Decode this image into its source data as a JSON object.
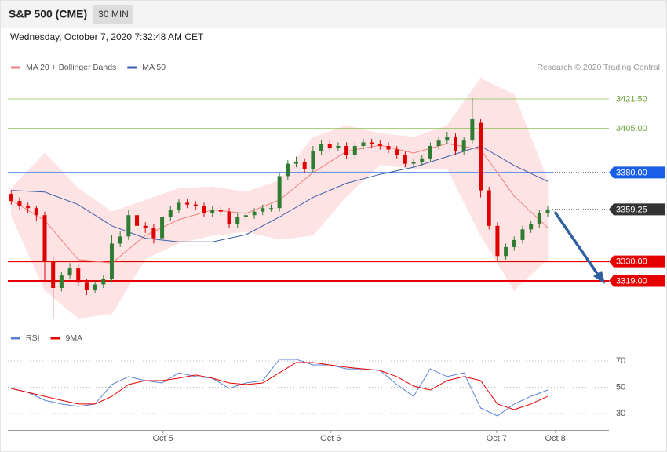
{
  "chart_data": [
    {
      "type": "candlestick",
      "title": "S&P 500 (CME)",
      "interval": "30 MIN",
      "subtitle": "Wednesday, October 7, 2020 7:32:48 AM CET",
      "credit": "Research © 2020 Trading Central",
      "xlim": [
        -0.4,
        71.3
      ],
      "ylim": [
        3296,
        3433
      ],
      "up_color": "#2e7d32",
      "down_color": "#e00000",
      "open": [
        3368,
        3364,
        3361,
        3360,
        3356,
        3330,
        3315,
        3322,
        3326,
        3318,
        3314,
        3317,
        3320,
        3340,
        3344,
        3356,
        3350,
        3349,
        3343,
        3355,
        3359,
        3363,
        3362,
        3361,
        3357,
        3359,
        3358,
        3351,
        3355,
        3356,
        3358,
        3360,
        3360,
        3378,
        3385,
        3386,
        3382,
        3392,
        3396,
        3394,
        3395,
        3390,
        3395,
        3397,
        3396,
        3395,
        3393,
        3390,
        3385,
        3386,
        3388,
        3395,
        3398,
        3400,
        3392,
        3398,
        3408,
        3370,
        3350,
        3333,
        3338,
        3342,
        3348,
        3351,
        3357
      ],
      "high": [
        3370,
        3366,
        3363,
        3361,
        3358,
        3333,
        3324,
        3329,
        3328,
        3320,
        3319,
        3322,
        3345,
        3347,
        3359,
        3358,
        3352,
        3351,
        3357,
        3361,
        3365,
        3365,
        3364,
        3363,
        3361,
        3361,
        3360,
        3357,
        3358,
        3360,
        3362,
        3362,
        3380,
        3387,
        3389,
        3388,
        3395,
        3398,
        3398,
        3397,
        3397,
        3397,
        3399,
        3399,
        3398,
        3397,
        3395,
        3392,
        3388,
        3390,
        3397,
        3400,
        3403,
        3402,
        3400,
        3422,
        3410,
        3372,
        3352,
        3340,
        3344,
        3350,
        3353,
        3359,
        3361
      ],
      "low": [
        3362,
        3359,
        3357,
        3353,
        3318,
        3298,
        3313,
        3320,
        3316,
        3311,
        3312,
        3315,
        3318,
        3338,
        3342,
        3348,
        3346,
        3340,
        3341,
        3353,
        3357,
        3360,
        3359,
        3355,
        3355,
        3356,
        3349,
        3349,
        3353,
        3354,
        3356,
        3358,
        3358,
        3376,
        3383,
        3380,
        3380,
        3390,
        3392,
        3392,
        3388,
        3388,
        3393,
        3394,
        3393,
        3391,
        3388,
        3383,
        3383,
        3384,
        3386,
        3393,
        3396,
        3390,
        3390,
        3396,
        3366,
        3348,
        3330,
        3331,
        3336,
        3340,
        3346,
        3349,
        3355
      ],
      "close": [
        3364,
        3361,
        3360,
        3356,
        3330,
        3315,
        3322,
        3326,
        3318,
        3314,
        3317,
        3320,
        3340,
        3344,
        3356,
        3350,
        3349,
        3343,
        3355,
        3359,
        3363,
        3362,
        3361,
        3357,
        3359,
        3358,
        3351,
        3355,
        3356,
        3358,
        3360,
        3360,
        3378,
        3385,
        3386,
        3382,
        3392,
        3396,
        3394,
        3395,
        3390,
        3395,
        3397,
        3396,
        3395,
        3393,
        3390,
        3385,
        3386,
        3388,
        3395,
        3398,
        3400,
        3392,
        3398,
        3410,
        3370,
        3350,
        3333,
        3338,
        3342,
        3348,
        3351,
        3357,
        3359.25
      ],
      "series": [
        {
          "name": "MA 20 + Bollinger Bands",
          "color": "#f08080",
          "band_color": "#fde3e3",
          "x": [
            0,
            4,
            8,
            12,
            16,
            20,
            24,
            28,
            32,
            36,
            40,
            44,
            48,
            52,
            56,
            60,
            64
          ],
          "values": [
            3364.5,
            3353,
            3331,
            3329,
            3344.6,
            3353.5,
            3359,
            3357,
            3364.5,
            3380,
            3392,
            3395.4,
            3391,
            3396.3,
            3393,
            3366.7,
            3349
          ],
          "upper": [
            3371,
            3391,
            3371,
            3357.9,
            3364.5,
            3371,
            3372,
            3369,
            3375.6,
            3399.9,
            3406.5,
            3402,
            3400,
            3406.5,
            3433,
            3424,
            3375.6
          ],
          "lower": [
            3355.7,
            3313.7,
            3298,
            3300.4,
            3331.4,
            3340.2,
            3344.6,
            3346.8,
            3342.4,
            3344.6,
            3366.7,
            3384.4,
            3382.2,
            3382.2,
            3344.6,
            3313.7,
            3331.4
          ]
        },
        {
          "name": "MA 50",
          "color": "#3b5ea8",
          "x": [
            0,
            4,
            8,
            12,
            16,
            20,
            24,
            28,
            32,
            36,
            40,
            44,
            48,
            52,
            56,
            60,
            64
          ],
          "values": [
            3370,
            3369,
            3362,
            3350,
            3343,
            3341,
            3341,
            3345,
            3355,
            3366,
            3374,
            3379,
            3383,
            3389,
            3395,
            3384,
            3375
          ]
        }
      ],
      "levels": [
        {
          "value": 3421.5,
          "label": "3421.50",
          "color": "#8cc152",
          "boxed": false,
          "line": "solid"
        },
        {
          "value": 3405,
          "label": "3405.00",
          "color": "#8cc152",
          "boxed": false,
          "line": "solid"
        },
        {
          "value": 3380,
          "label": "3380.00",
          "color": "#1a5ee8",
          "boxed": true,
          "line": "solid-dotted"
        },
        {
          "value": 3359.25,
          "label": "3359.25",
          "color": "#333333",
          "boxed": true,
          "line": "dotted"
        },
        {
          "value": 3330,
          "label": "3330.00",
          "color": "#e60000",
          "boxed": true,
          "line": "solid"
        },
        {
          "value": 3319,
          "label": "3319.00",
          "color": "#e60000",
          "boxed": true,
          "line": "solid"
        }
      ]
    },
    {
      "type": "line",
      "xlim": [
        -0.4,
        71.3
      ],
      "ylim": [
        20,
        90
      ],
      "yticks": [
        70,
        50,
        30
      ],
      "grid": true,
      "xticks": [
        {
          "value": 18.1,
          "label": "Oct 5"
        },
        {
          "value": 38.1,
          "label": "Oct 6"
        },
        {
          "value": 57.9,
          "label": "Oct 7"
        },
        {
          "value": 64.9,
          "label": "Oct 8"
        }
      ],
      "series": [
        {
          "name": "RSI",
          "color": "#5b7fd6",
          "x": [
            0,
            2,
            4,
            6,
            8,
            10,
            12,
            14,
            16,
            18,
            20,
            22,
            24,
            26,
            28,
            30,
            32,
            34,
            36,
            38,
            40,
            42,
            44,
            46,
            48,
            50,
            52,
            54,
            56,
            58,
            60,
            62,
            64
          ],
          "values": [
            49.1,
            46.1,
            40.1,
            37.2,
            35.4,
            37.2,
            52.1,
            58.1,
            55.1,
            53.3,
            61,
            58.1,
            56.9,
            49.1,
            53.3,
            55.1,
            71.2,
            71.2,
            67,
            67,
            64,
            64,
            62.8,
            52.1,
            43.1,
            64,
            58.1,
            61,
            34.2,
            28.2,
            37.2,
            43.1,
            47.9
          ]
        },
        {
          "name": "9MA",
          "color": "#e60000",
          "x": [
            0,
            2,
            4,
            6,
            8,
            10,
            12,
            14,
            16,
            18,
            20,
            22,
            24,
            26,
            28,
            30,
            32,
            34,
            36,
            38,
            40,
            42,
            44,
            46,
            48,
            50,
            52,
            54,
            56,
            58,
            60,
            62,
            64
          ],
          "values": [
            49.1,
            46.1,
            43.1,
            40.1,
            37.2,
            37.2,
            43.1,
            52.1,
            55.1,
            55.1,
            56.9,
            59.3,
            56.9,
            53.3,
            52.1,
            53.3,
            61,
            68.8,
            68.8,
            67,
            65.2,
            64,
            62.8,
            58.1,
            50.9,
            47.9,
            55.1,
            58.1,
            55.1,
            37.2,
            33,
            37.2,
            43.1
          ]
        }
      ]
    }
  ]
}
